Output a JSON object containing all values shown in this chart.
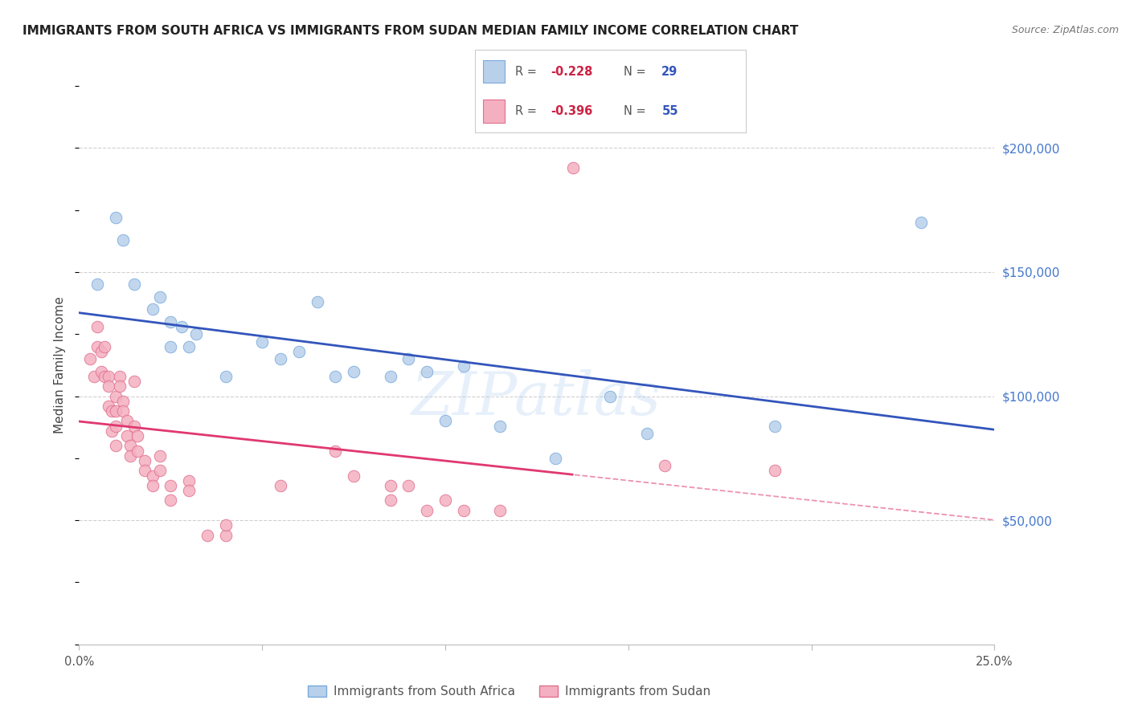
{
  "title": "IMMIGRANTS FROM SOUTH AFRICA VS IMMIGRANTS FROM SUDAN MEDIAN FAMILY INCOME CORRELATION CHART",
  "source": "Source: ZipAtlas.com",
  "ylabel": "Median Family Income",
  "xlim": [
    0.0,
    0.25
  ],
  "ylim": [
    0,
    225000
  ],
  "bg_color": "#ffffff",
  "grid_color": "#d0d0d0",
  "grid_style": "--",
  "sa_fill": "#b8d0ea",
  "sa_edge": "#7aaadd",
  "sa_line": "#3355bb",
  "sudan_fill": "#f4b0c0",
  "sudan_edge": "#e07090",
  "sudan_line": "#e03870",
  "legend_r1": "-0.228",
  "legend_n1": "29",
  "legend_r2": "-0.396",
  "legend_n2": "55",
  "legend_r_color": "#cc2244",
  "legend_n_color": "#3355bb",
  "ytick_color": "#4477cc",
  "sa_x": [
    0.005,
    0.01,
    0.012,
    0.015,
    0.02,
    0.022,
    0.025,
    0.028,
    0.03,
    0.032,
    0.04,
    0.05,
    0.055,
    0.06,
    0.065,
    0.07,
    0.075,
    0.085,
    0.09,
    0.095,
    0.1,
    0.105,
    0.115,
    0.13,
    0.145,
    0.155,
    0.19,
    0.23,
    0.025
  ],
  "sa_y": [
    145000,
    172000,
    163000,
    145000,
    135000,
    140000,
    130000,
    128000,
    120000,
    125000,
    108000,
    122000,
    115000,
    118000,
    138000,
    108000,
    110000,
    108000,
    115000,
    110000,
    90000,
    112000,
    88000,
    75000,
    100000,
    85000,
    88000,
    170000,
    120000
  ],
  "sudan_x": [
    0.003,
    0.004,
    0.005,
    0.005,
    0.006,
    0.006,
    0.007,
    0.007,
    0.008,
    0.008,
    0.008,
    0.009,
    0.009,
    0.01,
    0.01,
    0.01,
    0.01,
    0.011,
    0.011,
    0.012,
    0.012,
    0.013,
    0.013,
    0.014,
    0.014,
    0.015,
    0.015,
    0.016,
    0.016,
    0.018,
    0.018,
    0.02,
    0.02,
    0.022,
    0.022,
    0.025,
    0.025,
    0.03,
    0.03,
    0.035,
    0.04,
    0.04,
    0.055,
    0.07,
    0.075,
    0.085,
    0.085,
    0.09,
    0.095,
    0.1,
    0.105,
    0.115,
    0.135,
    0.16,
    0.19
  ],
  "sudan_y": [
    115000,
    108000,
    128000,
    120000,
    110000,
    118000,
    120000,
    108000,
    108000,
    104000,
    96000,
    94000,
    86000,
    100000,
    94000,
    88000,
    80000,
    108000,
    104000,
    98000,
    94000,
    90000,
    84000,
    80000,
    76000,
    106000,
    88000,
    84000,
    78000,
    74000,
    70000,
    68000,
    64000,
    76000,
    70000,
    64000,
    58000,
    66000,
    62000,
    44000,
    44000,
    48000,
    64000,
    78000,
    68000,
    64000,
    58000,
    64000,
    54000,
    58000,
    54000,
    54000,
    192000,
    72000,
    70000
  ],
  "watermark_text": "ZIPatlas",
  "watermark_color": "#aaccee",
  "watermark_alpha": 0.28
}
